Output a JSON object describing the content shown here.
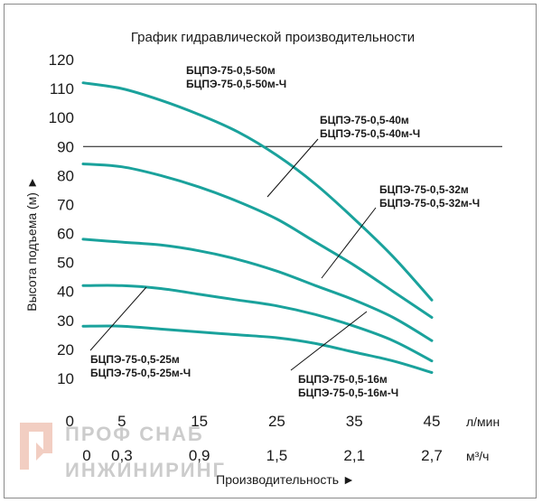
{
  "chart_data": {
    "type": "line",
    "title": "График гидравлической производительности",
    "ylabel": "Высота подъема (м) ►",
    "xlabel": "Производительность ►",
    "ylim": [
      0,
      120
    ],
    "xlim": [
      0,
      45
    ],
    "yticks": [
      10,
      20,
      30,
      40,
      50,
      60,
      70,
      80,
      90,
      100,
      110,
      120
    ],
    "y_zero_label": "0",
    "x_ticks_lpm": [
      "0",
      "5",
      "15",
      "25",
      "35",
      "45"
    ],
    "x_ticks_lpm_values": [
      0,
      5,
      15,
      25,
      35,
      45
    ],
    "x_unit_lpm": "л/мин",
    "x_ticks_m3h": [
      "0",
      "0,3",
      "0,9",
      "1,5",
      "2,1",
      "2,7"
    ],
    "x_ticks_m3h_values": [
      0,
      5,
      15,
      25,
      35,
      45
    ],
    "x_unit_m3h": "м³/ч",
    "reference_line_y": 90,
    "series_color": "#1aa29c",
    "series": [
      {
        "name": "БЦПЭ-75-0,5-50м / БЦПЭ-75-0,5-50м-Ч",
        "label1": "БЦПЭ-75-0,5-50м",
        "label2": "БЦПЭ-75-0,5-50м-Ч",
        "x": [
          0,
          5,
          10,
          15,
          20,
          25,
          30,
          35,
          40,
          45
        ],
        "y": [
          112,
          110,
          106,
          101,
          95,
          87,
          77,
          65,
          52,
          37
        ]
      },
      {
        "name": "БЦПЭ-75-0,5-40м / БЦПЭ-75-0,5-40м-Ч",
        "label1": "БЦПЭ-75-0,5-40м",
        "label2": "БЦПЭ-75-0,5-40м-Ч",
        "x": [
          0,
          5,
          10,
          15,
          20,
          25,
          30,
          35,
          40,
          45
        ],
        "y": [
          84,
          83,
          80,
          76,
          71,
          65,
          57,
          49,
          40,
          31
        ]
      },
      {
        "name": "БЦПЭ-75-0,5-32м / БЦПЭ-75-0,5-32м-Ч",
        "label1": "БЦПЭ-75-0,5-32м",
        "label2": "БЦПЭ-75-0,5-32м-Ч",
        "x": [
          0,
          5,
          10,
          15,
          20,
          25,
          30,
          35,
          40,
          45
        ],
        "y": [
          58,
          57,
          56,
          54,
          51,
          47,
          42,
          37,
          31,
          23
        ]
      },
      {
        "name": "БЦПЭ-75-0,5-25м / БЦПЭ-75-0,5-25м-Ч",
        "label1": "БЦПЭ-75-0,5-25м",
        "label2": "БЦПЭ-75-0,5-25м-Ч",
        "x": [
          0,
          5,
          10,
          15,
          20,
          25,
          30,
          35,
          40,
          45
        ],
        "y": [
          42,
          42,
          41,
          39,
          37,
          35,
          32,
          28,
          23,
          16
        ]
      },
      {
        "name": "БЦПЭ-75-0,5-16м / БЦПЭ-75-0,5-16м-Ч",
        "label1": "БЦПЭ-75-0,5-16м",
        "label2": "БЦПЭ-75-0,5-16м-Ч",
        "x": [
          0,
          5,
          10,
          15,
          20,
          25,
          30,
          35,
          40,
          45
        ],
        "y": [
          28,
          28,
          27,
          26,
          25,
          24,
          22,
          19,
          16,
          12
        ]
      }
    ]
  },
  "watermark": {
    "line1": "ПРОФ СНАБ",
    "line2": "ИНЖИНИРИНГ"
  }
}
